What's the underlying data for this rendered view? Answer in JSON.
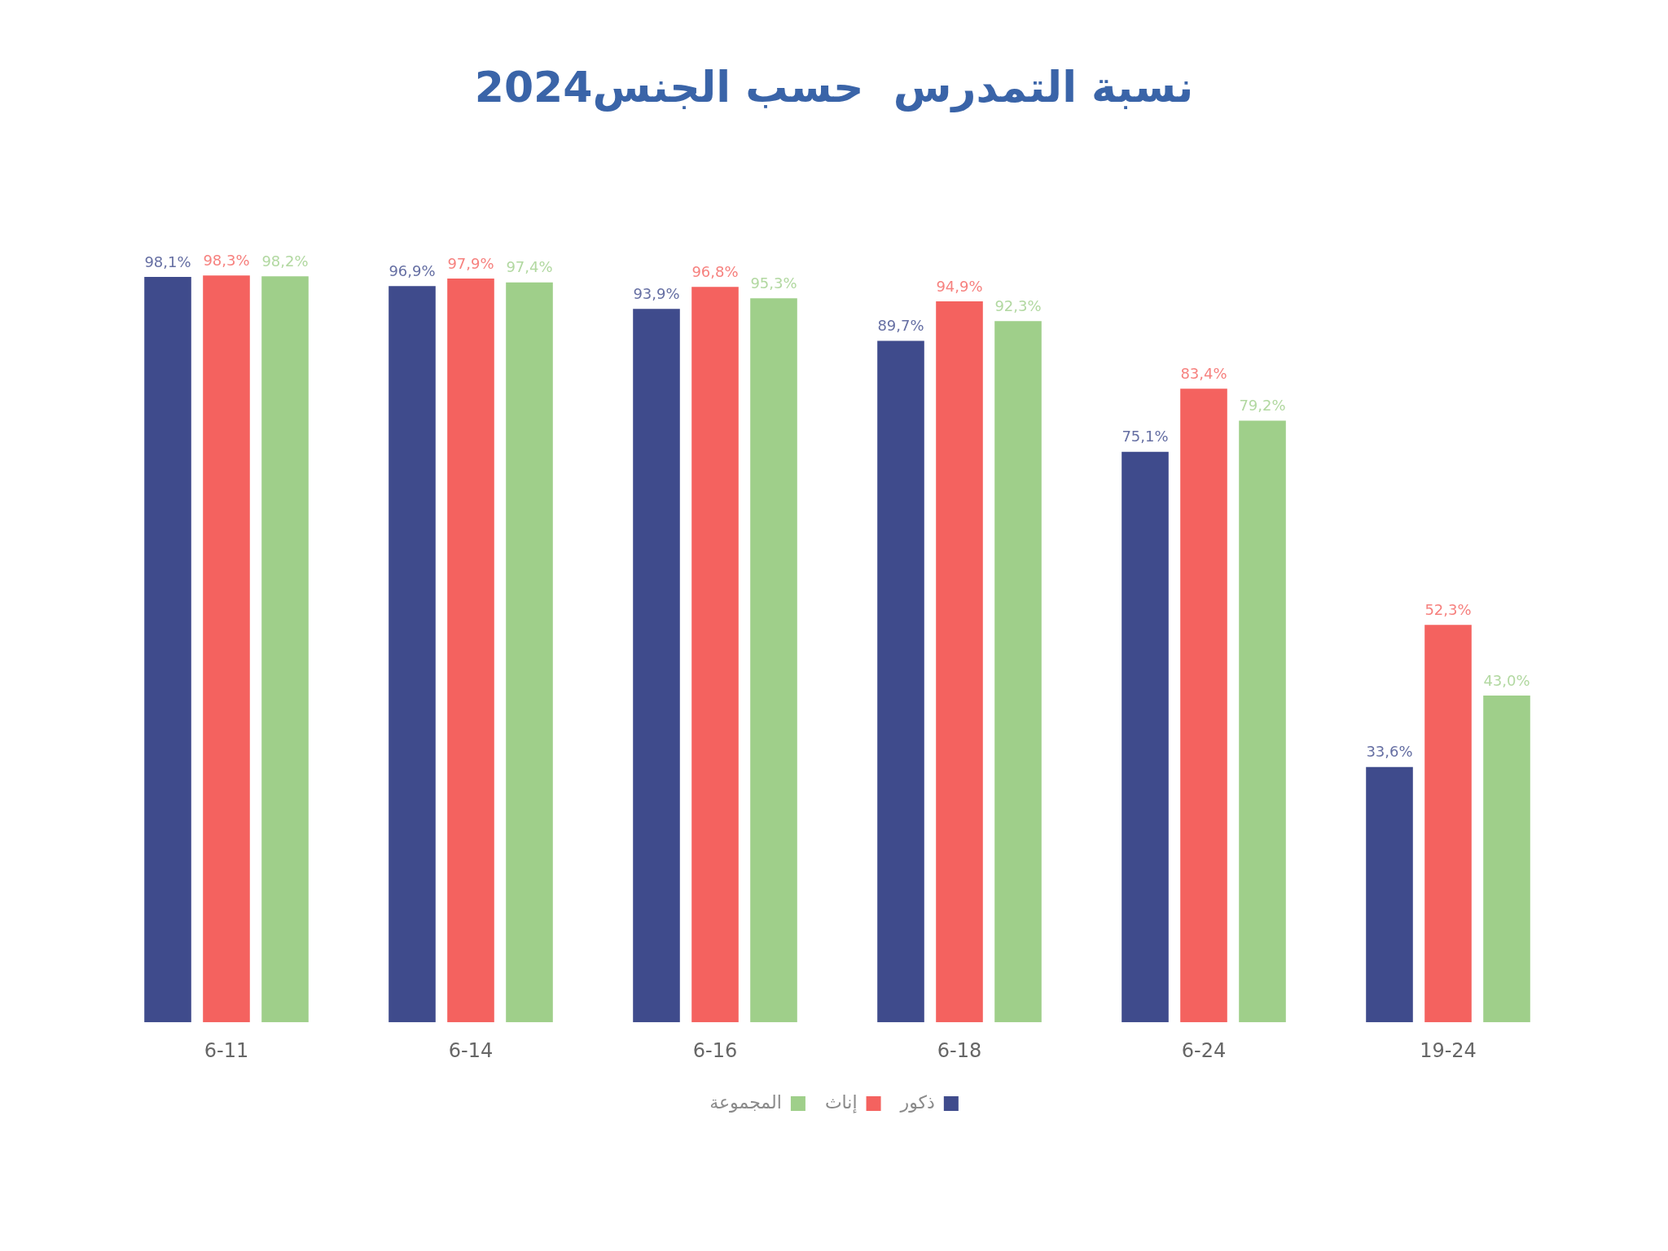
{
  "chart_data": {
    "type": "bar",
    "title": "نسبة التمدرس  حسب الجنس2024",
    "categories": [
      "6-11",
      "6-14",
      "6-16",
      "6-18",
      "6-24",
      "19-24"
    ],
    "series": [
      {
        "name": "ذكور",
        "color": "#3f4b8c",
        "values": [
          98.1,
          96.9,
          93.9,
          89.7,
          75.1,
          33.6
        ],
        "value_labels": [
          "98,1%",
          "96,9%",
          "93,9%",
          "89,7%",
          "75,1%",
          "33,6%"
        ]
      },
      {
        "name": "إناث",
        "color": "#f4625f",
        "values": [
          98.3,
          97.9,
          96.8,
          94.9,
          83.4,
          52.3
        ],
        "value_labels": [
          "98,3%",
          "97,9%",
          "96,8%",
          "94,9%",
          "83,4%",
          "52,3%"
        ]
      },
      {
        "name": "المجموعة",
        "color": "#9fcf8a",
        "values": [
          98.2,
          97.4,
          95.3,
          92.3,
          79.2,
          43.0
        ],
        "value_labels": [
          "98,2%",
          "97,4%",
          "95,3%",
          "92,3%",
          "79,2%",
          "43,0%"
        ]
      }
    ],
    "legend": "bottom",
    "grid": false,
    "tick_labels": "x"
  }
}
